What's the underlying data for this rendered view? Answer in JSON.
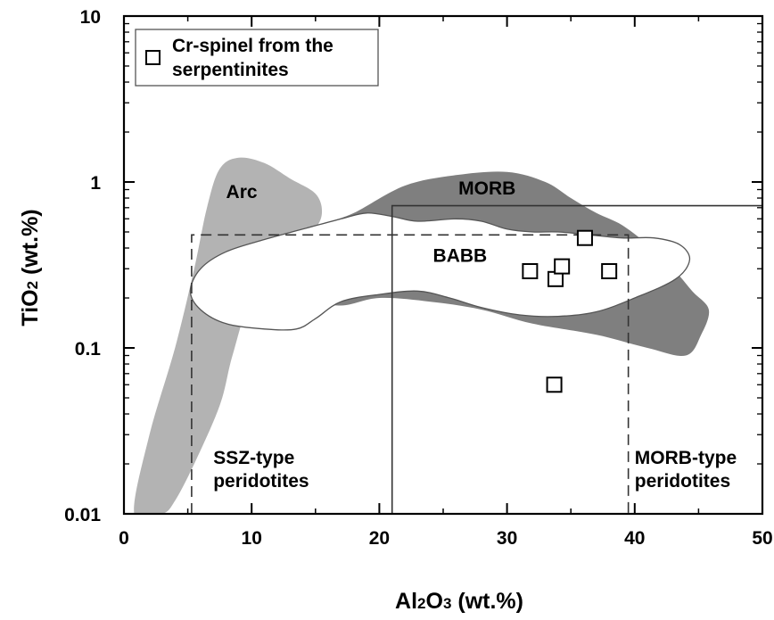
{
  "chart_data": {
    "type": "scatter",
    "xscale": "linear",
    "yscale": "log",
    "xlim": [
      0,
      50
    ],
    "ylim": [
      0.01,
      10
    ],
    "xticks": [
      0,
      10,
      20,
      30,
      40,
      50
    ],
    "yticks": [
      0.01,
      0.1,
      1,
      10
    ],
    "xtick_labels": [
      "0",
      "10",
      "20",
      "30",
      "40",
      "50"
    ],
    "ytick_labels": [
      "0.01",
      "0.1",
      "1",
      "10"
    ],
    "xlabel": {
      "main": "Al",
      "sub1": "2",
      "mid": "O",
      "sub2": "3",
      "tail": " (wt.%)"
    },
    "ylabel": {
      "main": "TiO",
      "sub1": "2",
      "tail": " (wt.%)"
    },
    "series": [
      {
        "name": "Cr-spinel from the serpentinites",
        "legend_lines": [
          "Cr-spinel from the",
          "serpentinites"
        ],
        "marker": "open-square",
        "points": [
          {
            "x": 31.8,
            "y": 0.29
          },
          {
            "x": 33.8,
            "y": 0.26
          },
          {
            "x": 34.3,
            "y": 0.31
          },
          {
            "x": 36.1,
            "y": 0.46
          },
          {
            "x": 38.0,
            "y": 0.29
          },
          {
            "x": 33.7,
            "y": 0.06
          }
        ]
      }
    ],
    "legend_position": "top-left",
    "grid": false,
    "fields": [
      {
        "label": "Arc",
        "fill": "#b3b3b3",
        "outline": [
          [
            0.8,
            0.01
          ],
          [
            2.0,
            0.03
          ],
          [
            4.0,
            0.1
          ],
          [
            5.5,
            0.3
          ],
          [
            6.5,
            0.7
          ],
          [
            7.5,
            1.2
          ],
          [
            9.0,
            1.4
          ],
          [
            11.0,
            1.3
          ],
          [
            13.0,
            1.05
          ],
          [
            15.0,
            0.85
          ],
          [
            15.5,
            0.65
          ],
          [
            14.8,
            0.5
          ],
          [
            12.5,
            0.32
          ],
          [
            10.0,
            0.2
          ],
          [
            8.5,
            0.09
          ],
          [
            7.5,
            0.045
          ],
          [
            5.5,
            0.02
          ],
          [
            4.0,
            0.012
          ],
          [
            3.0,
            0.01
          ]
        ]
      },
      {
        "label": "MORB",
        "fill": "#7f7f7f",
        "outline": [
          [
            15.5,
            0.55
          ],
          [
            18.0,
            0.65
          ],
          [
            22.0,
            0.95
          ],
          [
            26.0,
            1.1
          ],
          [
            30.0,
            1.15
          ],
          [
            33.0,
            1.0
          ],
          [
            35.0,
            0.8
          ],
          [
            37.0,
            0.65
          ],
          [
            39.0,
            0.55
          ],
          [
            41.0,
            0.42
          ],
          [
            43.0,
            0.3
          ],
          [
            44.5,
            0.22
          ],
          [
            45.8,
            0.17
          ],
          [
            45.2,
            0.12
          ],
          [
            44.0,
            0.09
          ],
          [
            41.0,
            0.1
          ],
          [
            37.0,
            0.12
          ],
          [
            32.0,
            0.14
          ],
          [
            28.0,
            0.17
          ],
          [
            24.0,
            0.19
          ],
          [
            20.0,
            0.2
          ],
          [
            17.0,
            0.18
          ],
          [
            14.5,
            0.2
          ],
          [
            13.5,
            0.3
          ],
          [
            14.5,
            0.45
          ]
        ]
      },
      {
        "label": "BABB",
        "fill": "#ffffff",
        "outline": [
          [
            5.2,
            0.22
          ],
          [
            6.0,
            0.3
          ],
          [
            8.0,
            0.38
          ],
          [
            11.0,
            0.45
          ],
          [
            14.0,
            0.52
          ],
          [
            17.0,
            0.6
          ],
          [
            19.0,
            0.65
          ],
          [
            21.0,
            0.62
          ],
          [
            23.0,
            0.58
          ],
          [
            26.0,
            0.6
          ],
          [
            28.0,
            0.58
          ],
          [
            30.0,
            0.52
          ],
          [
            32.0,
            0.5
          ],
          [
            34.0,
            0.5
          ],
          [
            36.5,
            0.48
          ],
          [
            39.0,
            0.46
          ],
          [
            41.5,
            0.46
          ],
          [
            43.5,
            0.42
          ],
          [
            44.3,
            0.34
          ],
          [
            43.2,
            0.26
          ],
          [
            40.0,
            0.2
          ],
          [
            37.0,
            0.165
          ],
          [
            34.0,
            0.155
          ],
          [
            31.0,
            0.158
          ],
          [
            28.0,
            0.175
          ],
          [
            25.5,
            0.2
          ],
          [
            23.0,
            0.22
          ],
          [
            20.0,
            0.21
          ],
          [
            17.0,
            0.19
          ],
          [
            15.0,
            0.15
          ],
          [
            13.5,
            0.13
          ],
          [
            11.0,
            0.13
          ],
          [
            8.0,
            0.14
          ],
          [
            6.0,
            0.17
          ]
        ]
      }
    ],
    "boxes": [
      {
        "style": "dashed",
        "x": [
          5.3,
          39.5
        ],
        "y": [
          0.01,
          0.48
        ]
      },
      {
        "style": "solid",
        "x": [
          21.0,
          50.0
        ],
        "y": [
          0.01,
          0.72
        ]
      }
    ],
    "annotations": [
      {
        "name": "label-arc",
        "text": "Arc",
        "x": 8.0,
        "y": 0.8
      },
      {
        "name": "label-morb",
        "text": "MORB",
        "x": 26.2,
        "y": 0.84
      },
      {
        "name": "label-babb",
        "text": "BABB",
        "x": 24.2,
        "y": 0.33
      },
      {
        "name": "label-ssz",
        "lines": [
          "SSZ-type",
          "peridotites"
        ],
        "x": 7.0,
        "y": 0.02
      },
      {
        "name": "label-morb-type",
        "lines": [
          "MORB-type",
          "peridotites"
        ],
        "x": 40.0,
        "y": 0.02
      }
    ]
  }
}
